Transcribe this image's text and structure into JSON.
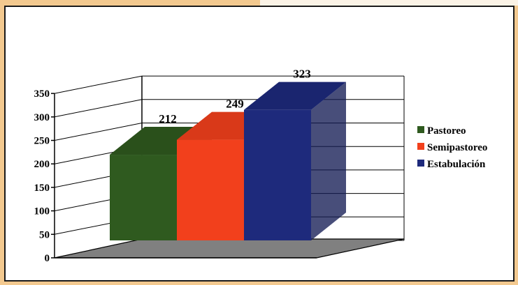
{
  "chart_data": {
    "type": "bar",
    "categories": [
      "Pastoreo",
      "Semipastoreo",
      "Estabulación"
    ],
    "values": [
      212,
      249,
      323
    ],
    "data_labels": [
      "212",
      "249",
      "323"
    ],
    "ylim": [
      0,
      350
    ],
    "yticks": [
      "0",
      "50",
      "100",
      "150",
      "200",
      "250",
      "300",
      "350"
    ],
    "legend": [
      {
        "name": "Pastoreo",
        "color": "#2f5a1f"
      },
      {
        "name": "Semipastoreo",
        "color": "#f2401c"
      },
      {
        "name": "Estabulación",
        "color": "#1e2a7c"
      }
    ],
    "legend_position": "right",
    "grid": true,
    "style": "3d-column",
    "colors": {
      "floor": "#808080",
      "grid": "#000000"
    }
  }
}
